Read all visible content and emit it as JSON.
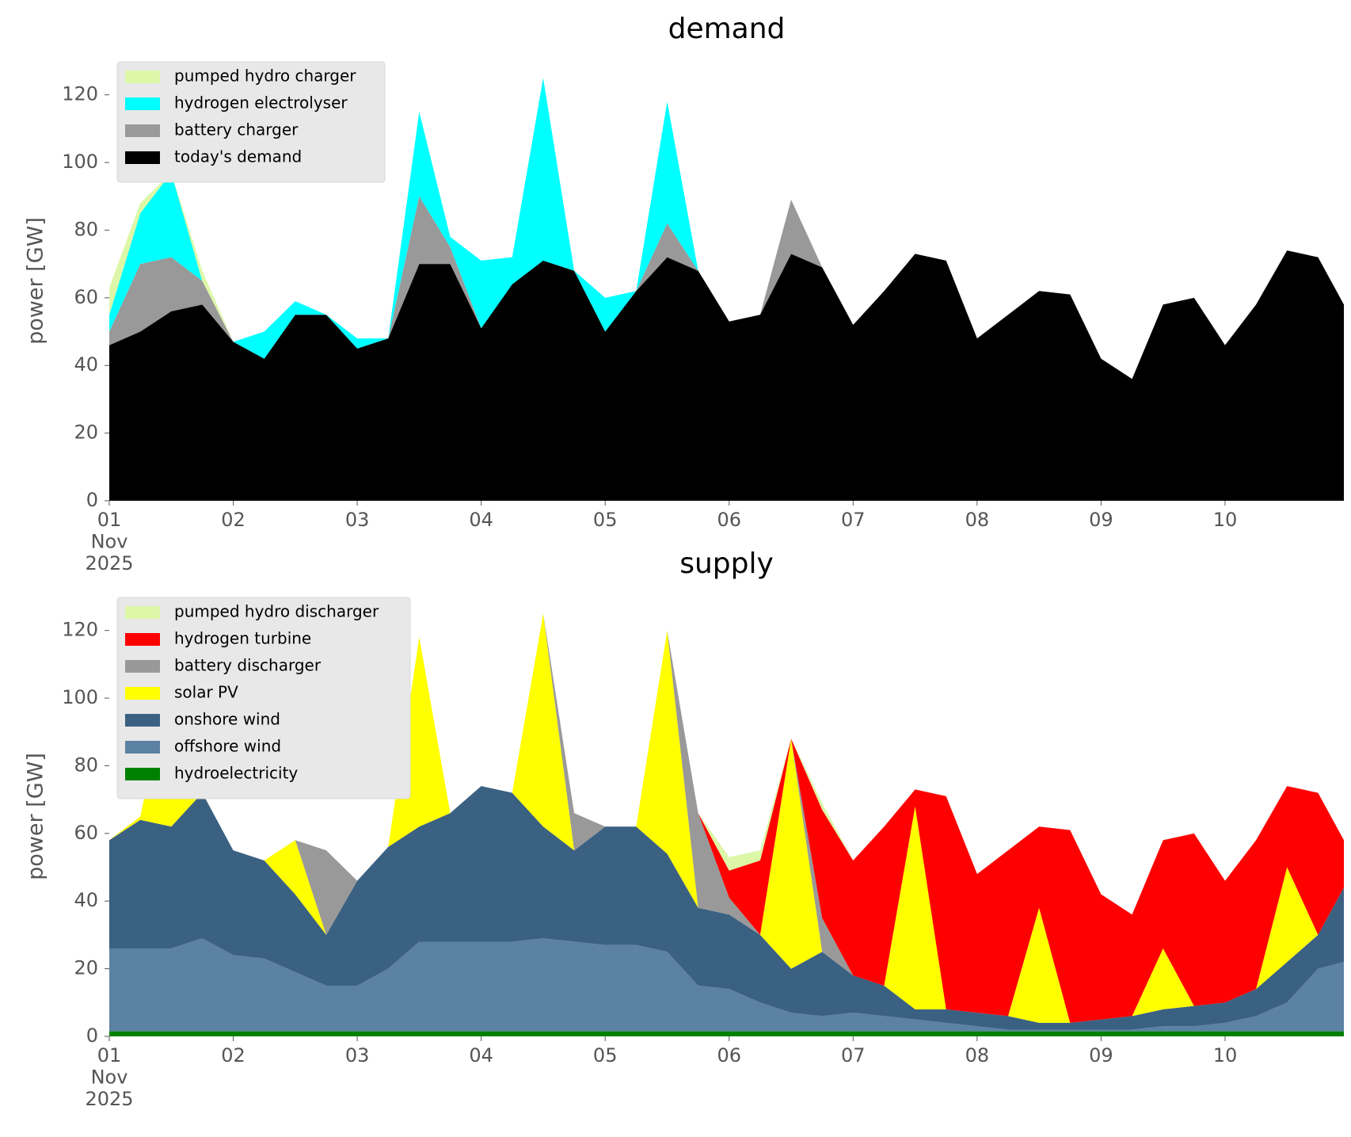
{
  "chart_data": [
    {
      "type": "area",
      "stacked": true,
      "title": "demand",
      "ylabel": "power [GW]",
      "legend": "upper left",
      "x": [
        "2025-11-01T00:00",
        "2025-11-01T06:00",
        "2025-11-01T12:00",
        "2025-11-01T18:00",
        "2025-11-02T00:00",
        "2025-11-02T06:00",
        "2025-11-02T12:00",
        "2025-11-02T18:00",
        "2025-11-03T00:00",
        "2025-11-03T06:00",
        "2025-11-03T12:00",
        "2025-11-03T18:00",
        "2025-11-04T00:00",
        "2025-11-04T06:00",
        "2025-11-04T12:00",
        "2025-11-04T18:00",
        "2025-11-05T00:00",
        "2025-11-05T06:00",
        "2025-11-05T12:00",
        "2025-11-05T18:00",
        "2025-11-06T00:00",
        "2025-11-06T06:00",
        "2025-11-06T12:00",
        "2025-11-06T18:00",
        "2025-11-07T00:00",
        "2025-11-07T06:00",
        "2025-11-07T12:00",
        "2025-11-07T18:00",
        "2025-11-08T00:00",
        "2025-11-08T06:00",
        "2025-11-08T12:00",
        "2025-11-08T18:00",
        "2025-11-09T00:00",
        "2025-11-09T06:00",
        "2025-11-09T12:00",
        "2025-11-09T18:00",
        "2025-11-10T00:00",
        "2025-11-10T06:00",
        "2025-11-10T12:00",
        "2025-11-10T18:00",
        "2025-11-10T23:00"
      ],
      "xlim": [
        "2025-11-01T00:00",
        "2025-11-10T23:00"
      ],
      "xticks": [
        {
          "value": "2025-11-01",
          "label": "01\nNov\n2025"
        },
        {
          "value": "2025-11-02",
          "label": "02"
        },
        {
          "value": "2025-11-03",
          "label": "03"
        },
        {
          "value": "2025-11-04",
          "label": "04"
        },
        {
          "value": "2025-11-05",
          "label": "05"
        },
        {
          "value": "2025-11-06",
          "label": "06"
        },
        {
          "value": "2025-11-07",
          "label": "07"
        },
        {
          "value": "2025-11-08",
          "label": "08"
        },
        {
          "value": "2025-11-09",
          "label": "09"
        },
        {
          "value": "2025-11-10",
          "label": "10"
        }
      ],
      "ylim": [
        0,
        130
      ],
      "yticks": [
        0,
        20,
        40,
        60,
        80,
        100,
        120
      ],
      "series": [
        {
          "name": "pumped hydro charger",
          "color": "#ddf7a8",
          "values": [
            8,
            3,
            0,
            3,
            0,
            0,
            0,
            0,
            0,
            0,
            0,
            0,
            0,
            0,
            0,
            0,
            0,
            0,
            0,
            0,
            0,
            0,
            0,
            0,
            0,
            0,
            0,
            0,
            0,
            0,
            0,
            0,
            0,
            0,
            0,
            0,
            0,
            0,
            0,
            0,
            0
          ]
        },
        {
          "name": "hydrogen electrolyser",
          "color": "#00ffff",
          "values": [
            5,
            15,
            25,
            0,
            0,
            8,
            4,
            0,
            3,
            0,
            25,
            3,
            20,
            8,
            54,
            0,
            10,
            0,
            36,
            0,
            0,
            0,
            0,
            0,
            0,
            0,
            0,
            0,
            0,
            0,
            0,
            0,
            0,
            0,
            0,
            0,
            0,
            0,
            0,
            0,
            0
          ]
        },
        {
          "name": "battery charger",
          "color": "#999999",
          "values": [
            4,
            20,
            16,
            7,
            0,
            0,
            0,
            0,
            0,
            0,
            20,
            5,
            0,
            0,
            0,
            0,
            0,
            0,
            10,
            0,
            0,
            0,
            16,
            0,
            0,
            0,
            0,
            0,
            0,
            0,
            0,
            0,
            0,
            0,
            0,
            0,
            0,
            0,
            0,
            0,
            0
          ]
        },
        {
          "name": "today's demand",
          "color": "#000000",
          "values": [
            46,
            50,
            56,
            58,
            47,
            42,
            55,
            55,
            45,
            48,
            70,
            70,
            51,
            64,
            71,
            68,
            50,
            62,
            72,
            68,
            53,
            55,
            73,
            69,
            52,
            62,
            73,
            71,
            48,
            55,
            62,
            61,
            42,
            36,
            58,
            60,
            46,
            58,
            74,
            72,
            58
          ]
        }
      ]
    },
    {
      "type": "area",
      "stacked": true,
      "title": "supply",
      "ylabel": "power [GW]",
      "legend": "upper left",
      "x": [
        "2025-11-01T00:00",
        "2025-11-01T06:00",
        "2025-11-01T12:00",
        "2025-11-01T18:00",
        "2025-11-02T00:00",
        "2025-11-02T06:00",
        "2025-11-02T12:00",
        "2025-11-02T18:00",
        "2025-11-03T00:00",
        "2025-11-03T06:00",
        "2025-11-03T12:00",
        "2025-11-03T18:00",
        "2025-11-04T00:00",
        "2025-11-04T06:00",
        "2025-11-04T12:00",
        "2025-11-04T18:00",
        "2025-11-05T00:00",
        "2025-11-05T06:00",
        "2025-11-05T12:00",
        "2025-11-05T18:00",
        "2025-11-06T00:00",
        "2025-11-06T06:00",
        "2025-11-06T12:00",
        "2025-11-06T18:00",
        "2025-11-07T00:00",
        "2025-11-07T06:00",
        "2025-11-07T12:00",
        "2025-11-07T18:00",
        "2025-11-08T00:00",
        "2025-11-08T06:00",
        "2025-11-08T12:00",
        "2025-11-08T18:00",
        "2025-11-09T00:00",
        "2025-11-09T06:00",
        "2025-11-09T12:00",
        "2025-11-09T18:00",
        "2025-11-10T00:00",
        "2025-11-10T06:00",
        "2025-11-10T12:00",
        "2025-11-10T18:00",
        "2025-11-10T23:00"
      ],
      "xlim": [
        "2025-11-01T00:00",
        "2025-11-10T23:00"
      ],
      "xticks": [
        {
          "value": "2025-11-01",
          "label": "01\nNov\n2025"
        },
        {
          "value": "2025-11-02",
          "label": "02"
        },
        {
          "value": "2025-11-03",
          "label": "03"
        },
        {
          "value": "2025-11-04",
          "label": "04"
        },
        {
          "value": "2025-11-05",
          "label": "05"
        },
        {
          "value": "2025-11-06",
          "label": "06"
        },
        {
          "value": "2025-11-07",
          "label": "07"
        },
        {
          "value": "2025-11-08",
          "label": "08"
        },
        {
          "value": "2025-11-09",
          "label": "09"
        },
        {
          "value": "2025-11-10",
          "label": "10"
        }
      ],
      "ylim": [
        0,
        130
      ],
      "yticks": [
        0,
        20,
        40,
        60,
        80,
        100,
        120
      ],
      "series": [
        {
          "name": "pumped hydro discharger",
          "color": "#ddf7a8",
          "values": [
            0,
            0,
            0,
            0,
            0,
            0,
            0,
            0,
            0,
            0,
            0,
            0,
            0,
            0,
            0,
            0,
            0,
            0,
            0,
            0,
            4,
            3,
            0,
            2,
            0,
            0,
            0,
            0,
            0,
            0,
            0,
            0,
            0,
            0,
            0,
            0,
            0,
            0,
            0,
            0,
            0
          ]
        },
        {
          "name": "hydrogen turbine",
          "color": "#ff0000",
          "values": [
            0,
            0,
            0,
            0,
            0,
            0,
            0,
            0,
            0,
            0,
            0,
            0,
            0,
            0,
            0,
            0,
            0,
            0,
            0,
            0,
            8,
            22,
            0,
            32,
            34,
            47,
            5,
            63,
            41,
            49,
            24,
            57,
            37,
            30,
            32,
            51,
            36,
            44,
            24,
            42,
            14
          ]
        },
        {
          "name": "battery discharger",
          "color": "#999999",
          "values": [
            0,
            0,
            0,
            0,
            0,
            0,
            0,
            25,
            0,
            0,
            0,
            0,
            0,
            0,
            0,
            11,
            0,
            0,
            0,
            28,
            5,
            0,
            0,
            10,
            0,
            0,
            0,
            0,
            0,
            0,
            0,
            0,
            0,
            0,
            0,
            0,
            0,
            0,
            0,
            0,
            0
          ]
        },
        {
          "name": "solar PV",
          "color": "#ffff00",
          "values": [
            0,
            1,
            46,
            0,
            0,
            0,
            16,
            0,
            0,
            0,
            56,
            0,
            0,
            0,
            63,
            0,
            0,
            0,
            66,
            0,
            0,
            0,
            68,
            0,
            0,
            0,
            60,
            0,
            0,
            0,
            34,
            0,
            0,
            0,
            18,
            0,
            0,
            0,
            28,
            0,
            0
          ]
        },
        {
          "name": "onshore wind",
          "color": "#3b6182",
          "values": [
            32,
            38,
            36,
            43,
            31,
            29,
            23,
            15,
            31,
            36,
            34,
            38,
            46,
            44,
            33,
            27,
            35,
            35,
            29,
            23,
            22,
            20,
            13,
            19,
            11,
            9,
            3,
            4,
            4,
            4,
            2,
            2,
            3,
            4,
            5,
            6,
            6,
            8,
            12,
            10,
            22
          ]
        },
        {
          "name": "offshore wind",
          "color": "#5b81a3",
          "values": [
            24.5,
            24.5,
            24.5,
            27.5,
            22.5,
            21.5,
            17.5,
            13.5,
            13.5,
            18.5,
            26.5,
            26.5,
            26.5,
            26.5,
            27.5,
            26.5,
            25.5,
            25.5,
            23.5,
            13.5,
            12.5,
            8.5,
            5.5,
            4.5,
            5.5,
            4.5,
            3.5,
            2.5,
            1.5,
            0.5,
            0.5,
            0.5,
            0.5,
            0.5,
            1.5,
            1.5,
            2.5,
            4.5,
            8.5,
            18.5,
            20.5
          ]
        },
        {
          "name": "hydroelectricity",
          "color": "#008000",
          "values": [
            1.5,
            1.5,
            1.5,
            1.5,
            1.5,
            1.5,
            1.5,
            1.5,
            1.5,
            1.5,
            1.5,
            1.5,
            1.5,
            1.5,
            1.5,
            1.5,
            1.5,
            1.5,
            1.5,
            1.5,
            1.5,
            1.5,
            1.5,
            1.5,
            1.5,
            1.5,
            1.5,
            1.5,
            1.5,
            1.5,
            1.5,
            1.5,
            1.5,
            1.5,
            1.5,
            1.5,
            1.5,
            1.5,
            1.5,
            1.5,
            1.5
          ]
        }
      ]
    }
  ]
}
